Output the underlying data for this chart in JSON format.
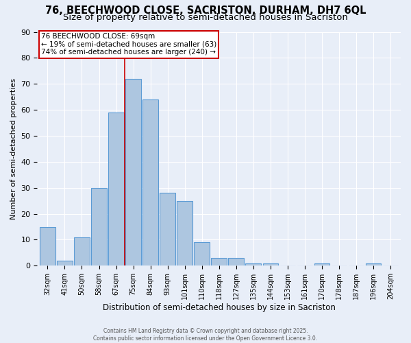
{
  "title1": "76, BEECHWOOD CLOSE, SACRISTON, DURHAM, DH7 6QL",
  "title2": "Size of property relative to semi-detached houses in Sacriston",
  "xlabel": "Distribution of semi-detached houses by size in Sacriston",
  "ylabel": "Number of semi-detached properties",
  "categories": [
    "32sqm",
    "41sqm",
    "50sqm",
    "58sqm",
    "67sqm",
    "75sqm",
    "84sqm",
    "93sqm",
    "101sqm",
    "110sqm",
    "118sqm",
    "127sqm",
    "135sqm",
    "144sqm",
    "153sqm",
    "161sqm",
    "170sqm",
    "178sqm",
    "187sqm",
    "196sqm",
    "204sqm"
  ],
  "bar_values": [
    15,
    2,
    11,
    30,
    59,
    72,
    64,
    28,
    25,
    9,
    3,
    3,
    1,
    1,
    0,
    0,
    1,
    0,
    0,
    1,
    0
  ],
  "bar_color": "#adc6e0",
  "bar_edge_color": "#5b9bd5",
  "property_line_color": "#cc0000",
  "annotation_line1": "76 BEECHWOOD CLOSE: 69sqm",
  "annotation_line2": "← 19% of semi-detached houses are smaller (63)",
  "annotation_line3": "74% of semi-detached houses are larger (240) →",
  "annotation_box_color": "#cc0000",
  "ylim": [
    0,
    90
  ],
  "yticks": [
    0,
    10,
    20,
    30,
    40,
    50,
    60,
    70,
    80,
    90
  ],
  "background_color": "#e8eef8",
  "grid_color": "#ffffff",
  "footer_line1": "Contains HM Land Registry data © Crown copyright and database right 2025.",
  "footer_line2": "Contains public sector information licensed under the Open Government Licence 3.0.",
  "title1_fontsize": 10.5,
  "title2_fontsize": 9.5,
  "property_line_index": 4.5
}
